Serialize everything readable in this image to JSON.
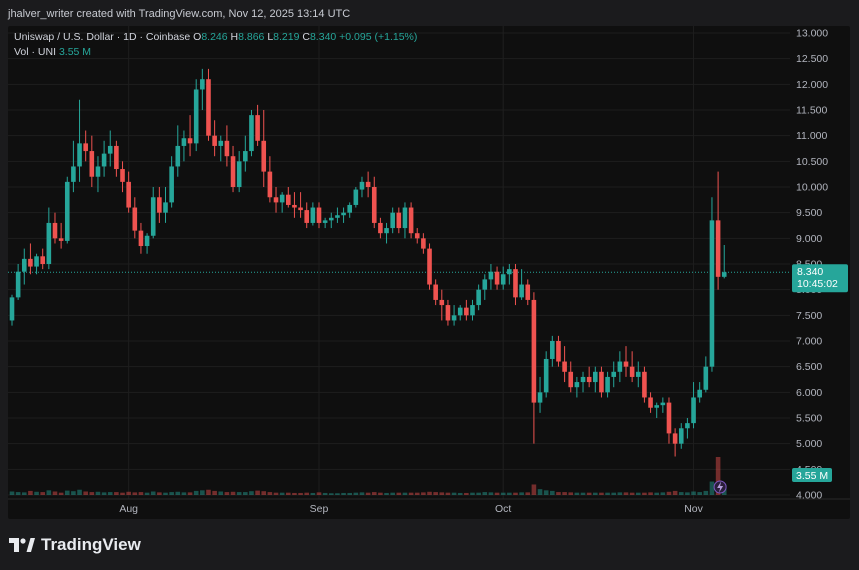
{
  "header": {
    "caption": "jhalver_writer created with TradingView.com, Nov 12, 2025 13:14 UTC"
  },
  "legend": {
    "symbol": "Uniswap / U.S. Dollar · 1D · Coinbase",
    "o_label": "O",
    "o_value": "8.246",
    "h_label": "H",
    "h_value": "8.866",
    "l_label": "L",
    "l_value": "8.219",
    "c_label": "C",
    "c_value": "8.340",
    "change": "+0.095 (+1.15%)",
    "vol_label": "Vol · UNI",
    "vol_value": "3.55 M"
  },
  "price_tag": {
    "price": "8.340",
    "countdown": "10:45:02"
  },
  "vol_tag": "3.55 M",
  "brand": "TradingView",
  "colors": {
    "up": "#26a69a",
    "down": "#ef5350",
    "background": "#0f0f0f",
    "axis_text": "#b2b5be"
  },
  "chart_data": {
    "type": "candlestick",
    "symbol": "UNIUSD",
    "exchange": "Coinbase",
    "interval": "1D",
    "ylim": [
      4.0,
      13.0
    ],
    "yticks": [
      "13.000",
      "12.500",
      "12.000",
      "11.500",
      "11.000",
      "10.500",
      "10.000",
      "9.500",
      "9.000",
      "8.500",
      "8.000",
      "7.500",
      "7.000",
      "6.500",
      "6.000",
      "5.500",
      "5.000",
      "4.500",
      "4.000"
    ],
    "xticks": [
      {
        "label": "Aug",
        "index": 19
      },
      {
        "label": "Sep",
        "index": 50
      },
      {
        "label": "Oct",
        "index": 80
      },
      {
        "label": "Nov",
        "index": 111
      }
    ],
    "last_price": 8.34,
    "series": [
      {
        "o": 7.4,
        "h": 7.9,
        "l": 7.3,
        "c": 7.85
      },
      {
        "o": 7.85,
        "h": 8.5,
        "l": 7.8,
        "c": 8.35
      },
      {
        "o": 8.35,
        "h": 8.8,
        "l": 8.1,
        "c": 8.6
      },
      {
        "o": 8.6,
        "h": 8.9,
        "l": 8.3,
        "c": 8.45
      },
      {
        "o": 8.45,
        "h": 8.7,
        "l": 8.3,
        "c": 8.65
      },
      {
        "o": 8.65,
        "h": 8.8,
        "l": 8.4,
        "c": 8.5
      },
      {
        "o": 8.5,
        "h": 9.6,
        "l": 8.4,
        "c": 9.3
      },
      {
        "o": 9.3,
        "h": 9.5,
        "l": 8.9,
        "c": 9.0
      },
      {
        "o": 9.0,
        "h": 9.3,
        "l": 8.8,
        "c": 8.95
      },
      {
        "o": 8.95,
        "h": 10.2,
        "l": 8.9,
        "c": 10.1
      },
      {
        "o": 10.1,
        "h": 10.9,
        "l": 9.9,
        "c": 10.4
      },
      {
        "o": 10.4,
        "h": 11.7,
        "l": 10.1,
        "c": 10.85
      },
      {
        "o": 10.85,
        "h": 11.1,
        "l": 10.5,
        "c": 10.7
      },
      {
        "o": 10.7,
        "h": 11.0,
        "l": 10.0,
        "c": 10.2
      },
      {
        "o": 10.2,
        "h": 10.6,
        "l": 9.9,
        "c": 10.4
      },
      {
        "o": 10.4,
        "h": 10.9,
        "l": 10.2,
        "c": 10.65
      },
      {
        "o": 10.65,
        "h": 11.1,
        "l": 10.4,
        "c": 10.8
      },
      {
        "o": 10.8,
        "h": 10.9,
        "l": 10.2,
        "c": 10.35
      },
      {
        "o": 10.35,
        "h": 10.5,
        "l": 9.9,
        "c": 10.1
      },
      {
        "o": 10.1,
        "h": 10.3,
        "l": 9.5,
        "c": 9.6
      },
      {
        "o": 9.6,
        "h": 9.8,
        "l": 9.0,
        "c": 9.15
      },
      {
        "o": 9.15,
        "h": 9.3,
        "l": 8.7,
        "c": 8.85
      },
      {
        "o": 8.85,
        "h": 9.1,
        "l": 8.7,
        "c": 9.05
      },
      {
        "o": 9.05,
        "h": 10.0,
        "l": 9.0,
        "c": 9.8
      },
      {
        "o": 9.8,
        "h": 10.0,
        "l": 9.3,
        "c": 9.5
      },
      {
        "o": 9.5,
        "h": 10.0,
        "l": 9.3,
        "c": 9.7
      },
      {
        "o": 9.7,
        "h": 10.6,
        "l": 9.6,
        "c": 10.4
      },
      {
        "o": 10.4,
        "h": 11.2,
        "l": 10.2,
        "c": 10.8
      },
      {
        "o": 10.8,
        "h": 11.1,
        "l": 10.5,
        "c": 10.95
      },
      {
        "o": 10.95,
        "h": 11.4,
        "l": 10.6,
        "c": 10.85
      },
      {
        "o": 10.85,
        "h": 12.1,
        "l": 10.7,
        "c": 11.9
      },
      {
        "o": 11.9,
        "h": 12.3,
        "l": 11.5,
        "c": 12.1
      },
      {
        "o": 12.1,
        "h": 12.3,
        "l": 10.9,
        "c": 11.0
      },
      {
        "o": 11.0,
        "h": 11.3,
        "l": 10.6,
        "c": 10.8
      },
      {
        "o": 10.8,
        "h": 11.0,
        "l": 10.5,
        "c": 10.9
      },
      {
        "o": 10.9,
        "h": 11.2,
        "l": 10.4,
        "c": 10.6
      },
      {
        "o": 10.6,
        "h": 10.8,
        "l": 9.9,
        "c": 10.0
      },
      {
        "o": 10.0,
        "h": 10.7,
        "l": 9.9,
        "c": 10.5
      },
      {
        "o": 10.5,
        "h": 11.0,
        "l": 10.3,
        "c": 10.7
      },
      {
        "o": 10.7,
        "h": 11.5,
        "l": 10.6,
        "c": 11.4
      },
      {
        "o": 11.4,
        "h": 11.6,
        "l": 10.8,
        "c": 10.9
      },
      {
        "o": 10.9,
        "h": 11.5,
        "l": 10.0,
        "c": 10.3
      },
      {
        "o": 10.3,
        "h": 10.6,
        "l": 9.7,
        "c": 9.8
      },
      {
        "o": 9.8,
        "h": 10.0,
        "l": 9.5,
        "c": 9.7
      },
      {
        "o": 9.7,
        "h": 9.9,
        "l": 9.5,
        "c": 9.85
      },
      {
        "o": 9.85,
        "h": 10.0,
        "l": 9.6,
        "c": 9.65
      },
      {
        "o": 9.65,
        "h": 9.9,
        "l": 9.4,
        "c": 9.6
      },
      {
        "o": 9.6,
        "h": 9.9,
        "l": 9.4,
        "c": 9.55
      },
      {
        "o": 9.55,
        "h": 9.7,
        "l": 9.2,
        "c": 9.3
      },
      {
        "o": 9.3,
        "h": 9.7,
        "l": 9.25,
        "c": 9.6
      },
      {
        "o": 9.6,
        "h": 9.7,
        "l": 9.2,
        "c": 9.3
      },
      {
        "o": 9.3,
        "h": 9.4,
        "l": 9.2,
        "c": 9.35
      },
      {
        "o": 9.35,
        "h": 9.5,
        "l": 9.2,
        "c": 9.4
      },
      {
        "o": 9.4,
        "h": 9.6,
        "l": 9.3,
        "c": 9.45
      },
      {
        "o": 9.45,
        "h": 9.6,
        "l": 9.3,
        "c": 9.5
      },
      {
        "o": 9.5,
        "h": 9.7,
        "l": 9.4,
        "c": 9.65
      },
      {
        "o": 9.65,
        "h": 10.0,
        "l": 9.6,
        "c": 9.95
      },
      {
        "o": 9.95,
        "h": 10.2,
        "l": 9.8,
        "c": 10.1
      },
      {
        "o": 10.1,
        "h": 10.3,
        "l": 9.8,
        "c": 10.0
      },
      {
        "o": 10.0,
        "h": 10.2,
        "l": 9.2,
        "c": 9.3
      },
      {
        "o": 9.3,
        "h": 9.4,
        "l": 9.0,
        "c": 9.1
      },
      {
        "o": 9.1,
        "h": 9.3,
        "l": 8.9,
        "c": 9.2
      },
      {
        "o": 9.2,
        "h": 9.6,
        "l": 9.1,
        "c": 9.5
      },
      {
        "o": 9.5,
        "h": 9.6,
        "l": 9.1,
        "c": 9.2
      },
      {
        "o": 9.2,
        "h": 9.7,
        "l": 9.0,
        "c": 9.6
      },
      {
        "o": 9.6,
        "h": 9.7,
        "l": 9.0,
        "c": 9.1
      },
      {
        "o": 9.1,
        "h": 9.2,
        "l": 8.9,
        "c": 9.0
      },
      {
        "o": 9.0,
        "h": 9.1,
        "l": 8.7,
        "c": 8.8
      },
      {
        "o": 8.8,
        "h": 8.9,
        "l": 8.0,
        "c": 8.1
      },
      {
        "o": 8.1,
        "h": 8.2,
        "l": 7.7,
        "c": 7.8
      },
      {
        "o": 7.8,
        "h": 8.0,
        "l": 7.4,
        "c": 7.7
      },
      {
        "o": 7.7,
        "h": 7.8,
        "l": 7.3,
        "c": 7.4
      },
      {
        "o": 7.4,
        "h": 7.7,
        "l": 7.3,
        "c": 7.5
      },
      {
        "o": 7.5,
        "h": 7.7,
        "l": 7.4,
        "c": 7.65
      },
      {
        "o": 7.65,
        "h": 7.8,
        "l": 7.4,
        "c": 7.5
      },
      {
        "o": 7.5,
        "h": 7.8,
        "l": 7.4,
        "c": 7.7
      },
      {
        "o": 7.7,
        "h": 8.1,
        "l": 7.6,
        "c": 8.0
      },
      {
        "o": 8.0,
        "h": 8.3,
        "l": 7.8,
        "c": 8.2
      },
      {
        "o": 8.2,
        "h": 8.5,
        "l": 8.0,
        "c": 8.35
      },
      {
        "o": 8.35,
        "h": 8.45,
        "l": 8.0,
        "c": 8.1
      },
      {
        "o": 8.1,
        "h": 8.45,
        "l": 8.0,
        "c": 8.3
      },
      {
        "o": 8.3,
        "h": 8.5,
        "l": 8.1,
        "c": 8.4
      },
      {
        "o": 8.4,
        "h": 8.5,
        "l": 7.7,
        "c": 7.85
      },
      {
        "o": 7.85,
        "h": 8.4,
        "l": 7.8,
        "c": 8.1
      },
      {
        "o": 8.1,
        "h": 8.2,
        "l": 7.7,
        "c": 7.8
      },
      {
        "o": 7.8,
        "h": 7.95,
        "l": 5.0,
        "c": 5.8
      },
      {
        "o": 5.8,
        "h": 6.3,
        "l": 5.6,
        "c": 6.0
      },
      {
        "o": 6.0,
        "h": 6.8,
        "l": 5.9,
        "c": 6.65
      },
      {
        "o": 6.65,
        "h": 7.1,
        "l": 6.5,
        "c": 7.0
      },
      {
        "o": 7.0,
        "h": 7.1,
        "l": 6.5,
        "c": 6.6
      },
      {
        "o": 6.6,
        "h": 6.9,
        "l": 6.2,
        "c": 6.4
      },
      {
        "o": 6.4,
        "h": 6.6,
        "l": 6.0,
        "c": 6.1
      },
      {
        "o": 6.1,
        "h": 6.3,
        "l": 5.9,
        "c": 6.2
      },
      {
        "o": 6.2,
        "h": 6.4,
        "l": 6.0,
        "c": 6.3
      },
      {
        "o": 6.3,
        "h": 6.5,
        "l": 6.1,
        "c": 6.2
      },
      {
        "o": 6.2,
        "h": 6.5,
        "l": 6.0,
        "c": 6.4
      },
      {
        "o": 6.4,
        "h": 6.5,
        "l": 5.9,
        "c": 6.0
      },
      {
        "o": 6.0,
        "h": 6.4,
        "l": 5.9,
        "c": 6.3
      },
      {
        "o": 6.3,
        "h": 6.6,
        "l": 6.1,
        "c": 6.4
      },
      {
        "o": 6.4,
        "h": 6.8,
        "l": 6.2,
        "c": 6.6
      },
      {
        "o": 6.6,
        "h": 6.9,
        "l": 6.3,
        "c": 6.5
      },
      {
        "o": 6.5,
        "h": 6.8,
        "l": 6.2,
        "c": 6.3
      },
      {
        "o": 6.3,
        "h": 6.6,
        "l": 6.1,
        "c": 6.4
      },
      {
        "o": 6.4,
        "h": 6.5,
        "l": 5.8,
        "c": 5.9
      },
      {
        "o": 5.9,
        "h": 6.0,
        "l": 5.6,
        "c": 5.7
      },
      {
        "o": 5.7,
        "h": 5.8,
        "l": 5.5,
        "c": 5.75
      },
      {
        "o": 5.75,
        "h": 5.9,
        "l": 5.6,
        "c": 5.8
      },
      {
        "o": 5.8,
        "h": 5.9,
        "l": 5.0,
        "c": 5.2
      },
      {
        "o": 5.2,
        "h": 5.3,
        "l": 4.75,
        "c": 5.0
      },
      {
        "o": 5.0,
        "h": 5.4,
        "l": 4.9,
        "c": 5.3
      },
      {
        "o": 5.3,
        "h": 5.5,
        "l": 5.1,
        "c": 5.4
      },
      {
        "o": 5.4,
        "h": 6.2,
        "l": 5.3,
        "c": 5.9
      },
      {
        "o": 5.9,
        "h": 6.2,
        "l": 5.8,
        "c": 6.05
      },
      {
        "o": 6.05,
        "h": 6.7,
        "l": 6.0,
        "c": 6.5
      },
      {
        "o": 6.5,
        "h": 9.8,
        "l": 6.4,
        "c": 9.35
      },
      {
        "o": 9.35,
        "h": 10.3,
        "l": 8.0,
        "c": 8.25
      },
      {
        "o": 8.25,
        "h": 8.87,
        "l": 8.22,
        "c": 8.34
      }
    ],
    "volume": [
      1.2,
      1.0,
      0.9,
      1.4,
      1.1,
      1.0,
      1.6,
      1.2,
      0.8,
      1.5,
      1.3,
      1.8,
      1.2,
      1.0,
      1.1,
      0.9,
      1.0,
      1.0,
      0.8,
      1.1,
      0.9,
      1.0,
      0.8,
      1.2,
      0.9,
      0.8,
      1.0,
      1.1,
      0.9,
      0.9,
      1.4,
      1.6,
      1.8,
      1.4,
      1.2,
      1.0,
      1.1,
      1.0,
      1.0,
      1.3,
      1.5,
      1.3,
      1.0,
      0.8,
      0.8,
      0.8,
      0.7,
      0.7,
      0.8,
      0.7,
      0.9,
      0.7,
      0.6,
      0.6,
      0.7,
      0.7,
      0.8,
      0.9,
      0.8,
      1.0,
      0.8,
      0.7,
      0.8,
      0.8,
      0.8,
      0.8,
      0.8,
      0.9,
      1.1,
      1.0,
      0.9,
      0.8,
      0.8,
      0.7,
      0.7,
      0.8,
      0.8,
      1.0,
      0.9,
      0.8,
      0.8,
      0.8,
      0.8,
      0.9,
      0.9,
      3.6,
      2.0,
      1.6,
      1.4,
      1.0,
      1.0,
      0.9,
      0.8,
      0.8,
      0.8,
      0.8,
      0.8,
      0.8,
      0.8,
      0.9,
      0.9,
      0.8,
      0.8,
      0.8,
      0.9,
      0.8,
      0.9,
      1.1,
      1.4,
      1.0,
      0.9,
      1.2,
      1.0,
      1.4,
      4.6,
      13.0,
      3.55
    ]
  }
}
